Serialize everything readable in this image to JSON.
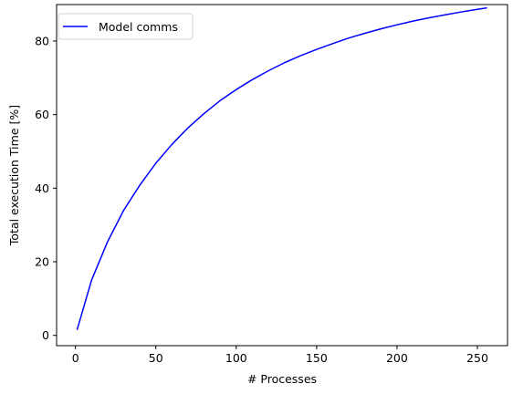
{
  "chart_data": {
    "type": "line",
    "title": "",
    "xlabel": "# Processes",
    "ylabel": "Total execution Time [%]",
    "xlim": [
      -11.75,
      268.75
    ],
    "ylim": [
      -2.8,
      89.9
    ],
    "xticks": [
      0,
      50,
      100,
      150,
      200,
      250
    ],
    "yticks": [
      0,
      20,
      40,
      60,
      80
    ],
    "grid": false,
    "legend_position": "upper-left",
    "series": [
      {
        "name": "Model comms",
        "color": "#0000ff",
        "x": [
          1,
          10,
          20,
          30,
          40,
          50,
          60,
          70,
          80,
          90,
          100,
          110,
          120,
          130,
          140,
          150,
          160,
          170,
          180,
          190,
          200,
          210,
          220,
          230,
          240,
          250,
          256
        ],
        "y": [
          1.5,
          15.0,
          25.5,
          34.0,
          40.8,
          46.8,
          51.9,
          56.4,
          60.3,
          63.8,
          66.8,
          69.5,
          71.9,
          74.1,
          76.0,
          77.7,
          79.3,
          80.8,
          82.1,
          83.3,
          84.4,
          85.4,
          86.3,
          87.1,
          87.9,
          88.6,
          89.0
        ]
      }
    ]
  }
}
